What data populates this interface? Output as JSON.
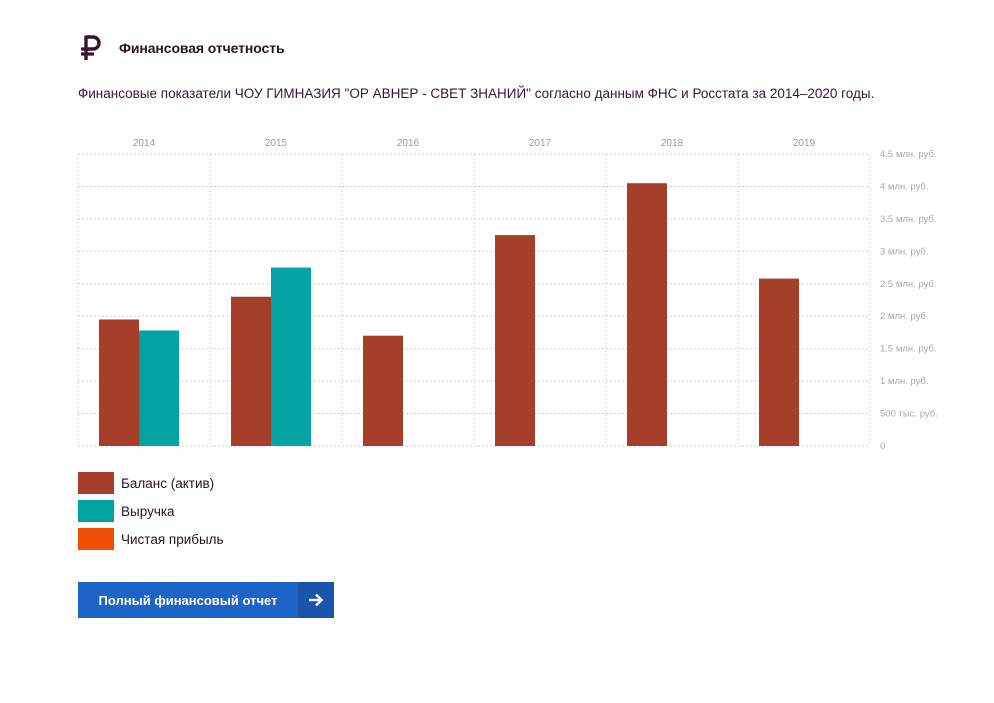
{
  "header": {
    "icon": "ruble-icon",
    "title": "Финансовая отчетность"
  },
  "intro_text": "Финансовые показатели ЧОУ ГИМНАЗИЯ \"ОР АВНЕР - СВЕТ ЗНАНИЙ\" согласно данным ФНС и Росстата за 2014–2020 годы.",
  "colors": {
    "balance": "#a63f2a",
    "revenue": "#04a3a3",
    "profit": "#f04e07",
    "button": "#1e63c6",
    "button_arrow_bg": "#1a55ad"
  },
  "chart_data": {
    "type": "bar",
    "categories": [
      "2014",
      "2015",
      "2016",
      "2017",
      "2018",
      "2019"
    ],
    "series": [
      {
        "name": "Баланс (актив)",
        "values": [
          1.95,
          2.3,
          1.7,
          3.25,
          4.05,
          2.58
        ]
      },
      {
        "name": "Выручка",
        "values": [
          1.78,
          2.75,
          null,
          null,
          null,
          null
        ]
      },
      {
        "name": "Чистая прибыль",
        "values": [
          null,
          null,
          null,
          null,
          null,
          null
        ]
      }
    ],
    "unit": "млн. руб.",
    "ylim": [
      0,
      4.5
    ],
    "y_ticks": [
      {
        "value": 4.5,
        "label": "4.5 млн. руб."
      },
      {
        "value": 4.0,
        "label": "4 млн. руб."
      },
      {
        "value": 3.5,
        "label": "3.5 млн. руб."
      },
      {
        "value": 3.0,
        "label": "3 млн. руб."
      },
      {
        "value": 2.5,
        "label": "2.5 млн. руб."
      },
      {
        "value": 2.0,
        "label": "2 млн. руб."
      },
      {
        "value": 1.5,
        "label": "1.5 млн. руб."
      },
      {
        "value": 1.0,
        "label": "1 млн. руб."
      },
      {
        "value": 0.5,
        "label": "500 тыс. руб."
      },
      {
        "value": 0,
        "label": "0"
      }
    ],
    "grid": true,
    "x_axis_position": "top",
    "y_axis_position": "right",
    "legend_position": "bottom-left"
  },
  "legend": {
    "items": [
      {
        "label": "Баланс (актив)"
      },
      {
        "label": "Выручка"
      },
      {
        "label": "Чистая прибыль"
      }
    ]
  },
  "button": {
    "label": "Полный финансовый отчет",
    "icon": "arrow-right-icon"
  }
}
